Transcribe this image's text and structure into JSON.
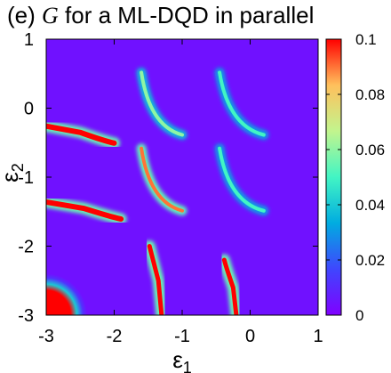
{
  "title_prefix": "(e)",
  "title_symbol": "G",
  "title_suffix": "for a ML-DQD in parallel",
  "chart_data": {
    "type": "heatmap",
    "title": "(e) G for a ML-DQD in parallel",
    "xlabel": "ε1",
    "ylabel": "ε2",
    "xlim": [
      -3,
      1
    ],
    "ylim": [
      -3,
      1
    ],
    "x_ticks": [
      "-3",
      "-2",
      "-1",
      "0",
      "1"
    ],
    "y_ticks": [
      "-3",
      "-2",
      "-1",
      "0",
      "1"
    ],
    "colorbar": {
      "range": [
        0,
        0.1
      ],
      "ticks": [
        "0",
        "0.02",
        "0.04",
        "0.06",
        "0.08",
        "0.1"
      ],
      "colormap": [
        "#8000ff",
        "#3f46fe",
        "#00ace0",
        "#42f5c4",
        "#c2f58e",
        "#ffc05c",
        "#ff0000"
      ]
    },
    "background_value": 0.004,
    "features": [
      {
        "shape": "arc",
        "x_range": [
          -1.6,
          -1.0
        ],
        "y_center": 0.0,
        "peak": 0.06
      },
      {
        "shape": "arc",
        "x_range": [
          -0.45,
          0.2
        ],
        "y_center": 0.0,
        "peak": 0.05
      },
      {
        "shape": "arc",
        "x_range": [
          -1.6,
          -1.0
        ],
        "y_center": -1.1,
        "peak": 0.09
      },
      {
        "shape": "arc",
        "x_range": [
          -0.45,
          0.2
        ],
        "y_center": -1.1,
        "peak": 0.05
      },
      {
        "shape": "band",
        "x_range": [
          -3.0,
          -2.0
        ],
        "y_center": -0.3,
        "peak": 0.1
      },
      {
        "shape": "band",
        "x_range": [
          -3.0,
          -1.9
        ],
        "y_center": -1.4,
        "peak": 0.1
      },
      {
        "shape": "band",
        "x_center": -1.35,
        "y_range": [
          -3.0,
          -2.0
        ],
        "peak": 0.1
      },
      {
        "shape": "band",
        "x_center": -0.25,
        "y_range": [
          -3.0,
          -2.2
        ],
        "peak": 0.1
      },
      {
        "shape": "corner",
        "x_range": [
          -3.0,
          -2.4
        ],
        "y_range": [
          -3.0,
          -2.4
        ],
        "peak": 0.1
      }
    ]
  }
}
